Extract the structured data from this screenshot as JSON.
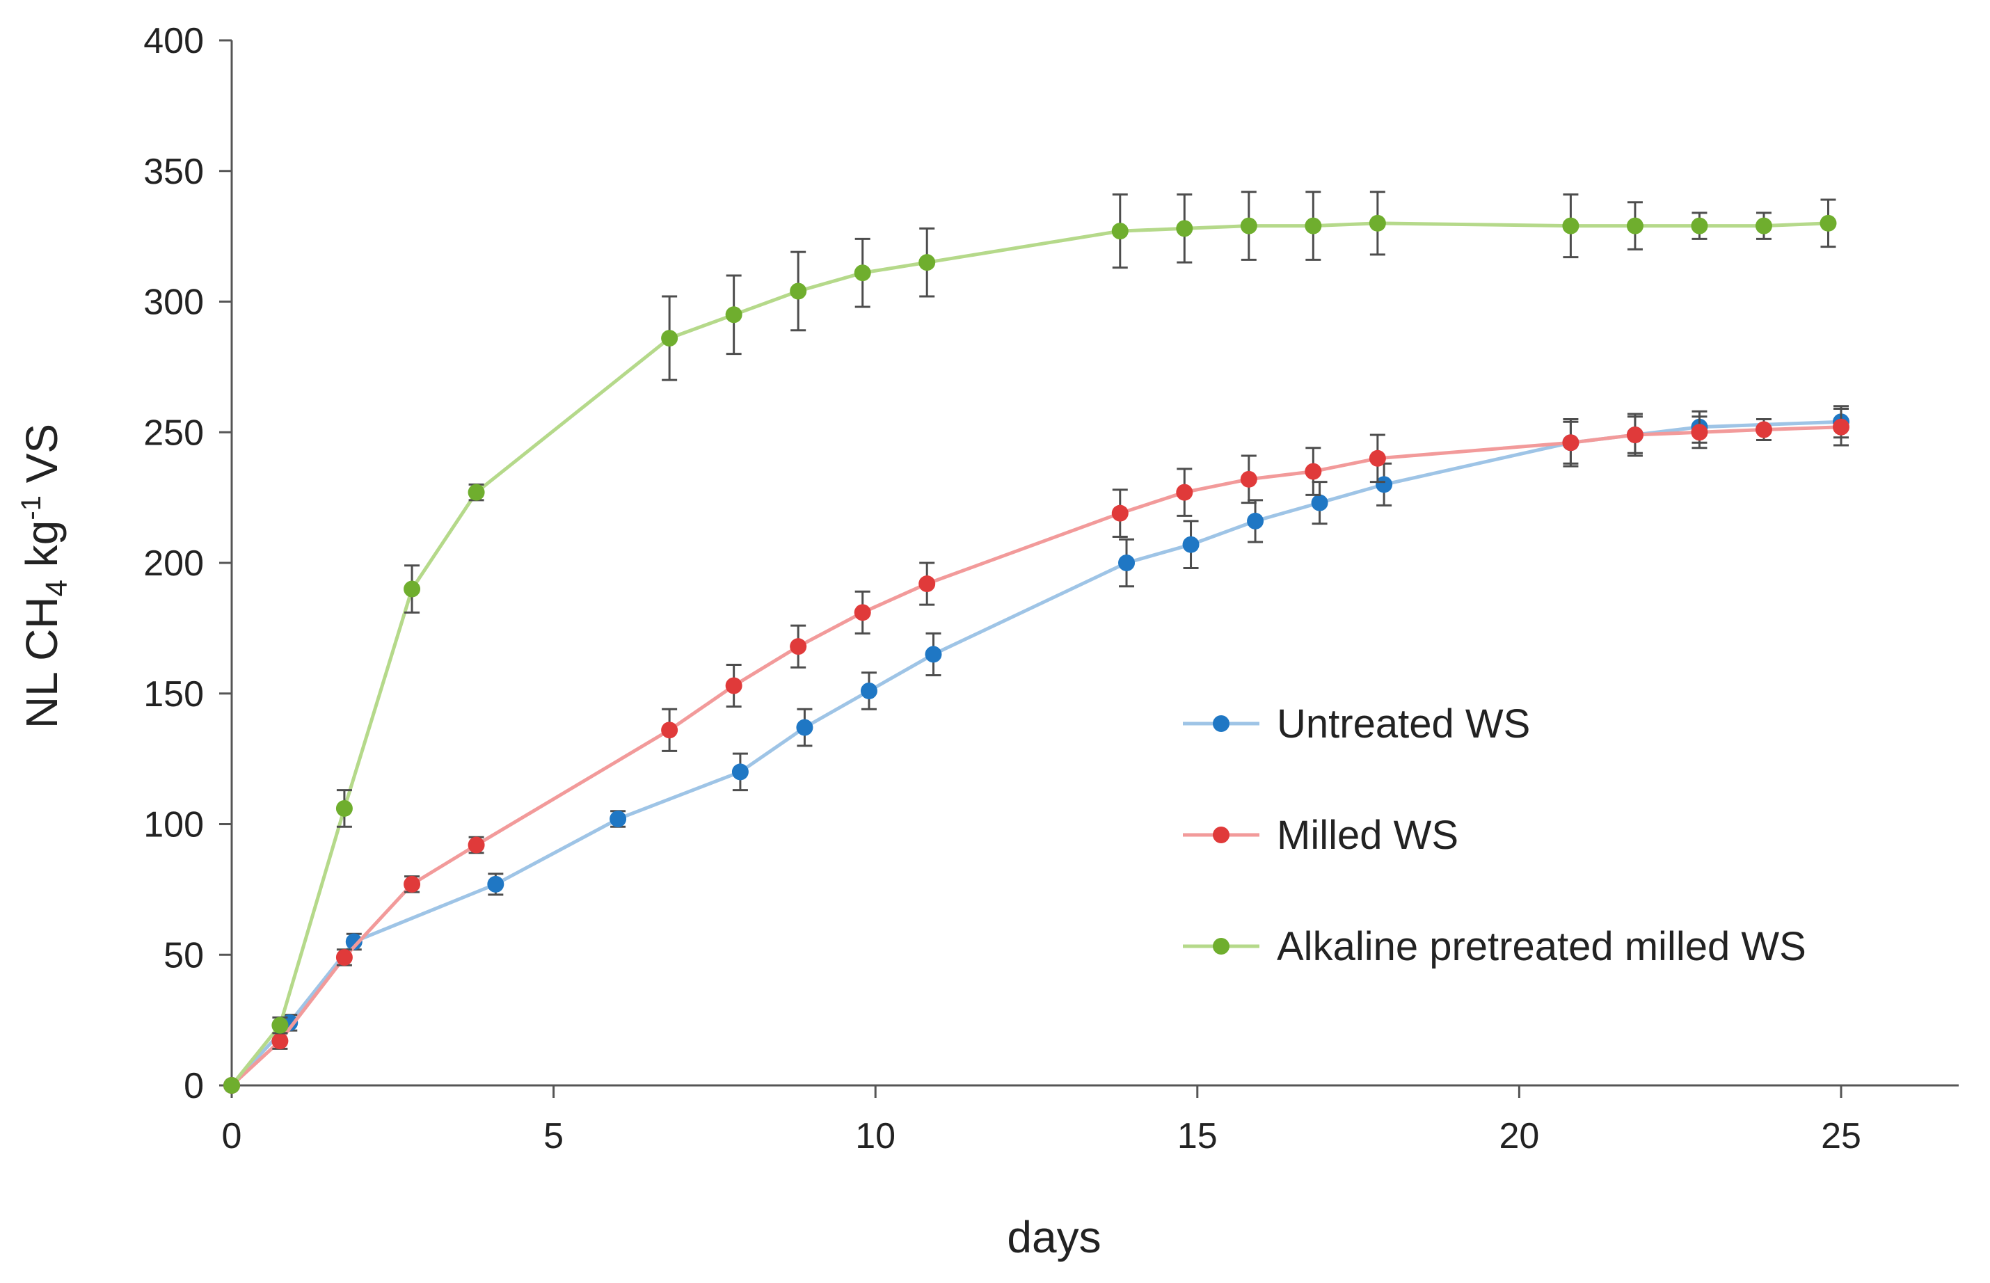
{
  "chart_data": {
    "type": "line",
    "title": "",
    "xlabel": "days",
    "ylabel": {
      "prefix": "NL CH",
      "sub": "4",
      "mid": " kg",
      "sup": "-1",
      "suffix": " VS"
    },
    "xlim": [
      0,
      27
    ],
    "ylim": [
      0,
      400
    ],
    "xticks": [
      0,
      5,
      10,
      15,
      20,
      25
    ],
    "yticks": [
      0,
      50,
      100,
      150,
      200,
      250,
      300,
      350,
      400
    ],
    "grid": false,
    "legend_position": "right-middle",
    "series": [
      {
        "name": "Untreated WS",
        "color": "#1f77c4",
        "line_color": "#9ec4e6",
        "x": [
          0,
          0.9,
          1.9,
          4.1,
          6.0,
          7.9,
          8.9,
          9.9,
          10.9,
          13.9,
          14.9,
          15.9,
          16.9,
          17.9,
          20.8,
          21.8,
          22.8,
          25.0
        ],
        "y": [
          0,
          24,
          55,
          77,
          102,
          120,
          137,
          151,
          165,
          200,
          207,
          216,
          223,
          230,
          246,
          249,
          252,
          254
        ],
        "err": [
          0,
          3,
          3,
          4,
          3,
          7,
          7,
          7,
          8,
          9,
          9,
          8,
          8,
          8,
          8,
          7,
          6,
          6
        ]
      },
      {
        "name": "Milled WS",
        "color": "#e03a3a",
        "line_color": "#f29a9a",
        "x": [
          0,
          0.75,
          1.75,
          2.8,
          3.8,
          6.8,
          7.8,
          8.8,
          9.8,
          10.8,
          13.8,
          14.8,
          15.8,
          16.8,
          17.8,
          20.8,
          21.8,
          22.8,
          23.8,
          25.0
        ],
        "y": [
          0,
          17,
          49,
          77,
          92,
          136,
          153,
          168,
          181,
          192,
          219,
          227,
          232,
          235,
          240,
          246,
          249,
          250,
          251,
          252
        ],
        "err": [
          0,
          3,
          3,
          3,
          3,
          8,
          8,
          8,
          8,
          8,
          9,
          9,
          9,
          9,
          9,
          9,
          8,
          6,
          4,
          7
        ]
      },
      {
        "name": "Alkaline pretreated milled WS",
        "color": "#6fae2e",
        "line_color": "#b5d98a",
        "x": [
          0,
          0.75,
          1.75,
          2.8,
          3.8,
          6.8,
          7.8,
          8.8,
          9.8,
          10.8,
          13.8,
          14.8,
          15.8,
          16.8,
          17.8,
          20.8,
          21.8,
          22.8,
          23.8,
          24.8
        ],
        "y": [
          0,
          23,
          106,
          190,
          227,
          286,
          295,
          304,
          311,
          315,
          327,
          328,
          329,
          329,
          330,
          329,
          329,
          329,
          329,
          330
        ],
        "err": [
          0,
          3,
          7,
          9,
          3,
          16,
          15,
          15,
          13,
          13,
          14,
          13,
          13,
          13,
          12,
          12,
          9,
          5,
          5,
          9
        ]
      }
    ]
  }
}
